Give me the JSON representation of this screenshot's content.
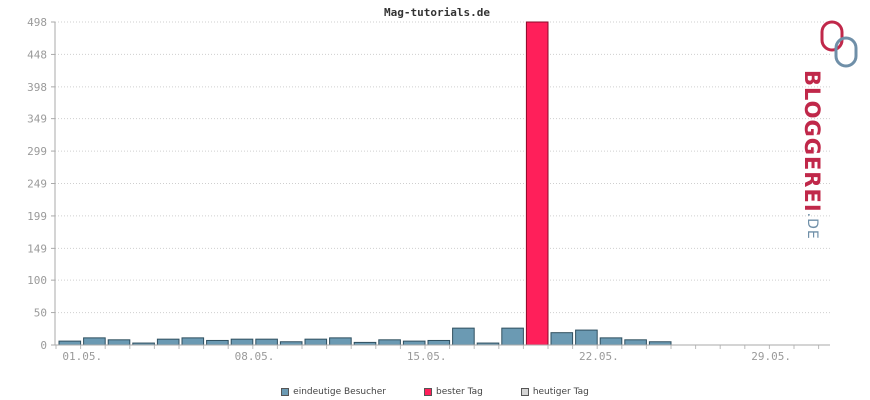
{
  "chart_data": {
    "type": "bar",
    "title": "Mag-tutorials.de",
    "x_tick_labels": [
      "01.05.",
      "08.05.",
      "15.05.",
      "22.05.",
      "29.05."
    ],
    "y_tick_labels": [
      "0",
      "50",
      "100",
      "149",
      "199",
      "249",
      "299",
      "349",
      "398",
      "448",
      "498"
    ],
    "ylim": [
      0,
      498
    ],
    "grid": true,
    "days": 31,
    "series": [
      {
        "name": "eindeutige Besucher",
        "color": "#6b9ab3",
        "values": [
          6,
          11,
          8,
          3,
          9,
          11,
          7,
          9,
          9,
          5,
          9,
          11,
          4,
          8,
          6,
          7,
          26,
          3,
          26,
          498,
          19,
          23,
          11,
          8,
          5,
          0,
          0,
          0,
          0,
          0,
          0
        ]
      }
    ],
    "best_day_index": 19,
    "best_day_value": 498,
    "legend": [
      {
        "label": "eindeutige Besucher",
        "color": "#6b9ab3"
      },
      {
        "label": "bester Tag",
        "color": "#ff1f5a"
      },
      {
        "label": "heutiger Tag",
        "color": "#d4d4d4"
      }
    ],
    "legend_position": "bottom-center"
  },
  "brand": {
    "name": "BLOGGEREI",
    "tld": ".DE",
    "color_primary": "#c0284a",
    "color_secondary": "#6f8fa8"
  }
}
